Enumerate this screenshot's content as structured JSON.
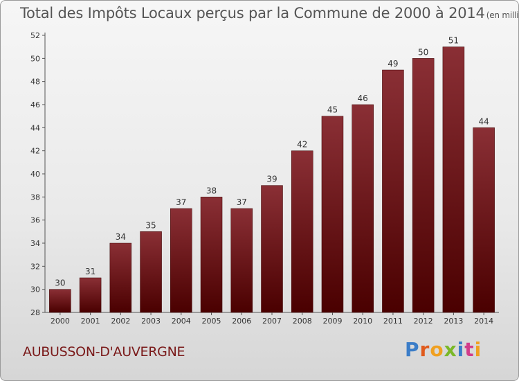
{
  "chart_data": {
    "type": "bar",
    "title": "Total des Impôts Locaux perçus par la Commune de 2000 à 2014",
    "unit_note": "(en milliers d'€)",
    "categories": [
      "2000",
      "2001",
      "2002",
      "2003",
      "2004",
      "2005",
      "2006",
      "2007",
      "2008",
      "2009",
      "2010",
      "2011",
      "2012",
      "2013",
      "2014"
    ],
    "values": [
      30,
      31,
      34,
      35,
      37,
      38,
      37,
      39,
      42,
      45,
      46,
      49,
      50,
      51,
      44
    ],
    "ylim": [
      28,
      52
    ],
    "yticks": [
      28,
      30,
      32,
      34,
      36,
      38,
      40,
      42,
      44,
      46,
      48,
      50,
      52
    ],
    "xlabel": "",
    "ylabel": "",
    "grid": false,
    "bar_color_top": "#8a2f35",
    "bar_color_bottom": "#4a0000"
  },
  "commune_name": "AUBUSSON-D'AUVERGNE",
  "logo": {
    "letters": [
      "P",
      "r",
      "o",
      "x",
      "i",
      "t",
      "i"
    ],
    "colors": [
      "#3b7dc8",
      "#e05a1c",
      "#f0a020",
      "#7ab828",
      "#3b7dc8",
      "#d23c8a",
      "#f0a020"
    ]
  }
}
